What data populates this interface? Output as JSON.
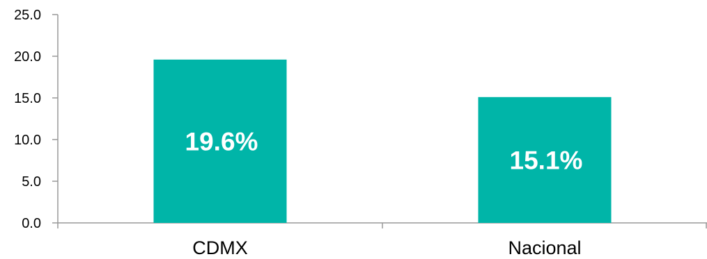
{
  "chart_data": {
    "type": "bar",
    "categories": [
      "CDMX",
      "Nacional"
    ],
    "values": [
      19.6,
      15.1
    ],
    "data_labels": [
      "19.6%",
      "15.1%"
    ],
    "y_ticks": [
      "0.0",
      "5.0",
      "10.0",
      "15.0",
      "20.0",
      "25.0"
    ],
    "ylim": [
      0,
      25
    ],
    "title": "",
    "xlabel": "",
    "ylabel": "",
    "grid": false,
    "legend": "none",
    "bar_color": "#00B5A8",
    "axis_color": "#999999"
  }
}
